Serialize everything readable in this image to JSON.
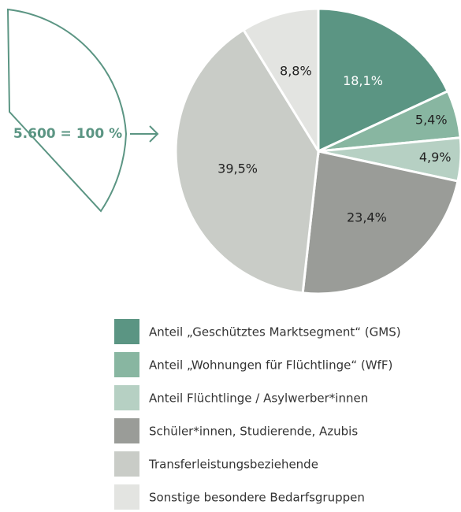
{
  "chart_data": {
    "type": "pie",
    "annotation": "5.600 = 100 %",
    "categories": [
      "Anteil „Geschütztes Marktsegment“ (GMS)",
      "Anteil „Wohnungen für Flüchtlinge“ (WfF)",
      "Anteil Flüchtlinge / Asylwerber*innen",
      "Schüler*innen, Studierende, Azubis",
      "Transferleistungsbeziehende",
      "Sonstige besondere Bedarfsgruppen"
    ],
    "values": [
      18.1,
      5.4,
      4.9,
      23.4,
      39.5,
      8.8
    ],
    "value_labels": [
      "18,1%",
      "5,4%",
      "4,9%",
      "23,4%",
      "39,5%",
      "8,8%"
    ],
    "colors": [
      "#5b9583",
      "#88b6a1",
      "#b6d0c3",
      "#9a9c98",
      "#c9ccc7",
      "#e3e4e1"
    ],
    "legend": "bottom"
  }
}
